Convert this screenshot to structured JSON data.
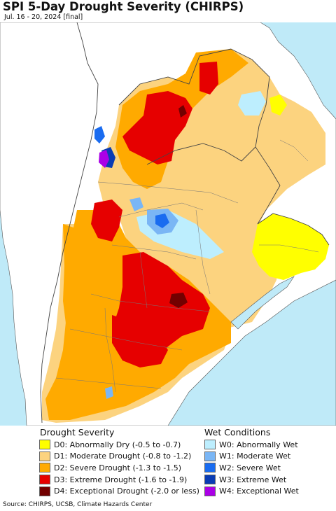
{
  "title": "SPI 5-Day Drought Severity (CHIRPS)",
  "subtitle": "Jul. 16 - 20, 2024 [final]",
  "colors": {
    "water": "#bfeaf8",
    "land_bg": "#ffffff",
    "border": "#555555",
    "D0": "#ffff00",
    "D1": "#fcd37f",
    "D2": "#ffaa00",
    "D3": "#e60000",
    "D4": "#730000",
    "W0": "#bdeefe",
    "W1": "#7ab6f5",
    "W2": "#1a6cf0",
    "W3": "#0a3cb4",
    "W4": "#aa00e6"
  },
  "legend": {
    "drought_heading": "Drought Severity",
    "wet_heading": "Wet Conditions",
    "drought_items": [
      {
        "swatch": "D0",
        "label": "D0: Abnormally Dry (-0.5 to -0.7)"
      },
      {
        "swatch": "D1",
        "label": "D1: Moderate Drought (-0.8 to -1.2)"
      },
      {
        "swatch": "D2",
        "label": "D2: Severe Drought (-1.3 to -1.5)"
      },
      {
        "swatch": "D3",
        "label": "D3: Extreme Drought (-1.6 to -1.9)"
      },
      {
        "swatch": "D4",
        "label": "D4: Exceptional Drought (-2.0 or less)"
      }
    ],
    "wet_items": [
      {
        "swatch": "W0",
        "label": "W0: Abnormally Wet"
      },
      {
        "swatch": "W1",
        "label": "W1: Moderate Wet"
      },
      {
        "swatch": "W2",
        "label": "W2: Severe Wet"
      },
      {
        "swatch": "W3",
        "label": "W3: Extreme Wet"
      },
      {
        "swatch": "W4",
        "label": "W4: Exceptional Wet"
      }
    ]
  },
  "source": "Source: CHIRPS, UCSB, Climate Hazards Center"
}
